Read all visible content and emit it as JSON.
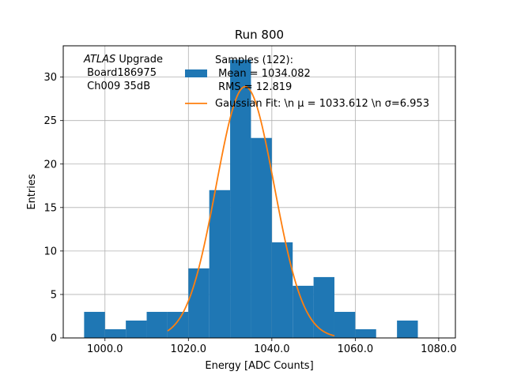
{
  "chart_data": {
    "type": "bar",
    "title": "Run 800",
    "xlabel": "Energy [ADC Counts]",
    "ylabel": "Entries",
    "xlim": [
      990,
      1084
    ],
    "ylim": [
      0,
      33.6
    ],
    "grid": true,
    "bin_width": 5,
    "bins": [
      {
        "x0": 995,
        "count": 3
      },
      {
        "x0": 1000,
        "count": 1
      },
      {
        "x0": 1005,
        "count": 2
      },
      {
        "x0": 1010,
        "count": 3
      },
      {
        "x0": 1015,
        "count": 3
      },
      {
        "x0": 1020,
        "count": 8
      },
      {
        "x0": 1025,
        "count": 17
      },
      {
        "x0": 1030,
        "count": 32
      },
      {
        "x0": 1035,
        "count": 23
      },
      {
        "x0": 1040,
        "count": 11
      },
      {
        "x0": 1045,
        "count": 6
      },
      {
        "x0": 1050,
        "count": 7
      },
      {
        "x0": 1055,
        "count": 3
      },
      {
        "x0": 1060,
        "count": 1
      },
      {
        "x0": 1065,
        "count": 0
      },
      {
        "x0": 1070,
        "count": 2
      }
    ],
    "fit": {
      "mu": 1033.612,
      "sigma": 6.953,
      "amplitude": 28.9
    },
    "x_ticks": [
      {
        "value": 1000,
        "label": "1000.0"
      },
      {
        "value": 1020,
        "label": "1020.0"
      },
      {
        "value": 1040,
        "label": "1040.0"
      },
      {
        "value": 1060,
        "label": "1060.0"
      },
      {
        "value": 1080,
        "label": "1080.0"
      }
    ],
    "y_ticks": [
      {
        "value": 0,
        "label": "0"
      },
      {
        "value": 5,
        "label": "5"
      },
      {
        "value": 10,
        "label": "10"
      },
      {
        "value": 15,
        "label": "15"
      },
      {
        "value": 20,
        "label": "20"
      },
      {
        "value": 25,
        "label": "25"
      },
      {
        "value": 30,
        "label": "30"
      }
    ],
    "annotation": {
      "atlas": "ATLAS",
      "upgrade": " Upgrade",
      "line2": " Board186975",
      "line3": " Ch009 35dB"
    },
    "legend": {
      "placement": "top-right",
      "hist_lines": [
        "Samples (122):",
        " Mean = 1034.082",
        " RMS = 12.819"
      ],
      "fit_label": "Gaussian Fit: \\n μ = 1033.612 \\n σ=6.953"
    },
    "colors": {
      "bars": "#1f77b4",
      "fit": "#ff7f0e",
      "grid": "#b0b0b0"
    }
  }
}
